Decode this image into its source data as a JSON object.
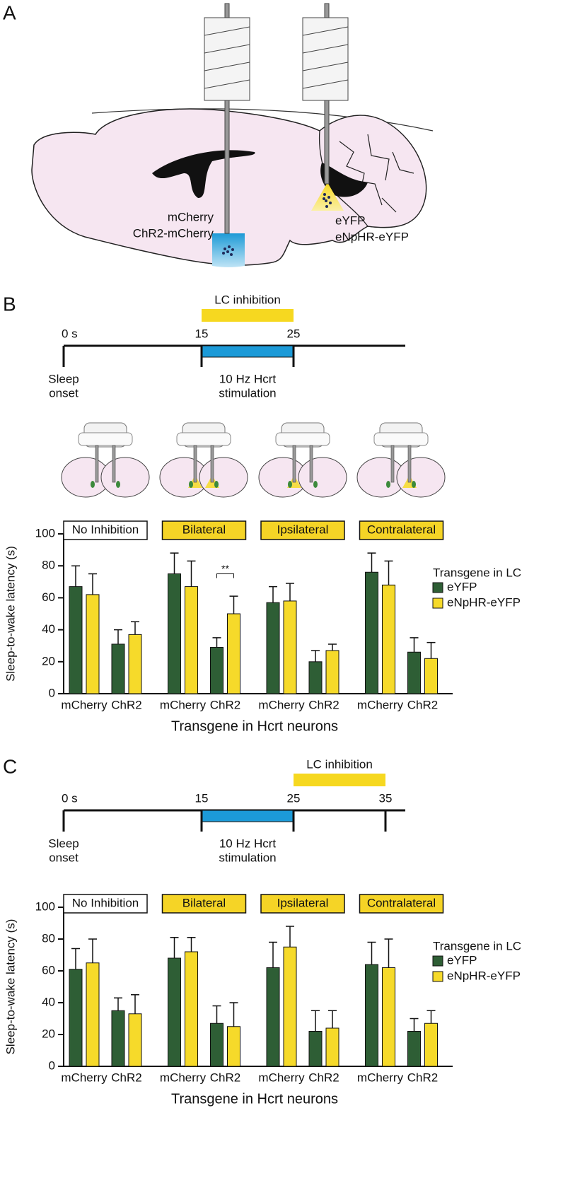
{
  "panel_a": {
    "label": "A",
    "left_labels": [
      "mCherry",
      "ChR2-mCherry"
    ],
    "right_labels": [
      "eYFP",
      "eNpHR-eYFP"
    ]
  },
  "panel_b": {
    "label": "B",
    "timeline": {
      "ticks": [
        {
          "value": 0,
          "label": "0 s"
        },
        15,
        25
      ],
      "inhibition": {
        "label": "LC inhibition",
        "range": [
          15,
          25
        ]
      },
      "stimulation": {
        "label": [
          "10 Hz Hcrt",
          "stimulation"
        ],
        "range": [
          15,
          25
        ]
      },
      "onset": [
        "Sleep",
        "onset"
      ]
    }
  },
  "panel_c": {
    "label": "C",
    "timeline": {
      "ticks": [
        {
          "value": 0,
          "label": "0 s"
        },
        15,
        25,
        35
      ],
      "inhibition": {
        "label": "LC inhibition",
        "range": [
          25,
          35
        ]
      },
      "stimulation": {
        "label": [
          "10 Hz Hcrt",
          "stimulation"
        ],
        "range": [
          15,
          25
        ]
      },
      "onset": [
        "Sleep",
        "onset"
      ]
    }
  },
  "chart_data": [
    {
      "type": "bar",
      "ylabel": "Sleep-to-wake latency (s)",
      "xlabel": "Transgene in Hcrt neurons",
      "groups": [
        "No Inhibition",
        "Bilateral",
        "Ipsilateral",
        "Contralateral"
      ],
      "group_colors": [
        "#ffffff",
        "#f5d426",
        "#f5d426",
        "#f5d426"
      ],
      "categories": [
        "mCherry",
        "ChR2",
        "mCherry",
        "ChR2",
        "mCherry",
        "ChR2",
        "mCherry",
        "ChR2"
      ],
      "category_colors": {
        "mCherry": "#b22d2d",
        "ChR2": "#4d7fc0"
      },
      "legend_title": "Transgene in LC",
      "series": [
        {
          "name": "eYFP",
          "color": "#2e5e35",
          "values": [
            67,
            31,
            75,
            29,
            57,
            20,
            76,
            26
          ],
          "errors": [
            13,
            9,
            13,
            6,
            10,
            7,
            12,
            9
          ]
        },
        {
          "name": "eNpHR-eYFP",
          "color": "#f6da2a",
          "values": [
            62,
            37,
            67,
            50,
            58,
            27,
            68,
            22
          ],
          "errors": [
            13,
            8,
            16,
            11,
            11,
            4,
            15,
            10
          ]
        }
      ],
      "annotation": "**",
      "ylim": [
        0,
        100
      ],
      "yticks": [
        0,
        20,
        40,
        60,
        80,
        100
      ]
    },
    {
      "type": "bar",
      "ylabel": "Sleep-to-wake latency (s)",
      "xlabel": "Transgene in Hcrt neurons",
      "groups": [
        "No Inhibition",
        "Bilateral",
        "Ipsilateral",
        "Contralateral"
      ],
      "group_colors": [
        "#ffffff",
        "#f5d426",
        "#f5d426",
        "#f5d426"
      ],
      "categories": [
        "mCherry",
        "ChR2",
        "mCherry",
        "ChR2",
        "mCherry",
        "ChR2",
        "mCherry",
        "ChR2"
      ],
      "category_colors": {
        "mCherry": "#b22d2d",
        "ChR2": "#4d7fc0"
      },
      "legend_title": "Transgene in LC",
      "series": [
        {
          "name": "eYFP",
          "color": "#2e5e35",
          "values": [
            61,
            35,
            68,
            27,
            62,
            22,
            64,
            22
          ],
          "errors": [
            13,
            8,
            13,
            11,
            16,
            13,
            14,
            8
          ]
        },
        {
          "name": "eNpHR-eYFP",
          "color": "#f6da2a",
          "values": [
            65,
            33,
            72,
            25,
            75,
            24,
            62,
            27
          ],
          "errors": [
            15,
            12,
            9,
            15,
            13,
            11,
            18,
            8
          ]
        }
      ],
      "ylim": [
        0,
        100
      ],
      "yticks": [
        0,
        20,
        40,
        60,
        80,
        100
      ]
    }
  ]
}
